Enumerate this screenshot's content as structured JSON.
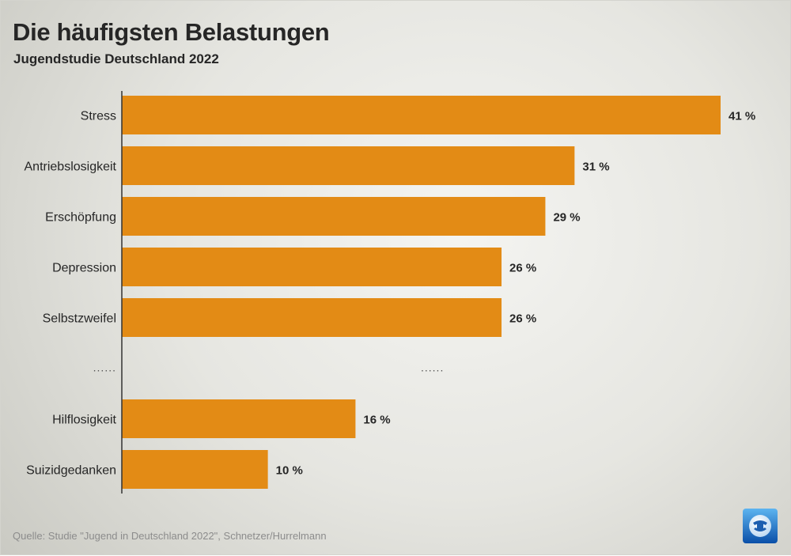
{
  "title": "Die häufigsten Belastungen",
  "subtitle": "Jugendstudie Deutschland 2022",
  "source": "Quelle: Studie \"Jugend in Deutschland 2022\", Schnetzer/Hurrelmann",
  "logo_icon": "tagesschau-globe-logo",
  "colors": {
    "bar": "#e38b15",
    "axis": "#333333",
    "text": "#262626"
  },
  "chart_data": {
    "type": "bar",
    "orientation": "horizontal",
    "title": "Die häufigsten Belastungen",
    "subtitle": "Jugendstudie Deutschland 2022",
    "unit": "%",
    "categories": [
      "Stress",
      "Antriebslosigkeit",
      "Erschöpfung",
      "Depression",
      "Selbstzweifel",
      "Hilflosigkeit",
      "Suizidgedanken"
    ],
    "values": [
      41,
      31,
      29,
      26,
      26,
      16,
      10
    ],
    "value_labels": [
      "41 %",
      "31 %",
      "29 %",
      "26 %",
      "26 %",
      "16 %",
      "10 %"
    ],
    "gap_after_index": 4,
    "gap_label": "......",
    "gap_value_label": "......",
    "xlim": [
      0,
      41
    ],
    "grid": false,
    "legend": "none"
  }
}
